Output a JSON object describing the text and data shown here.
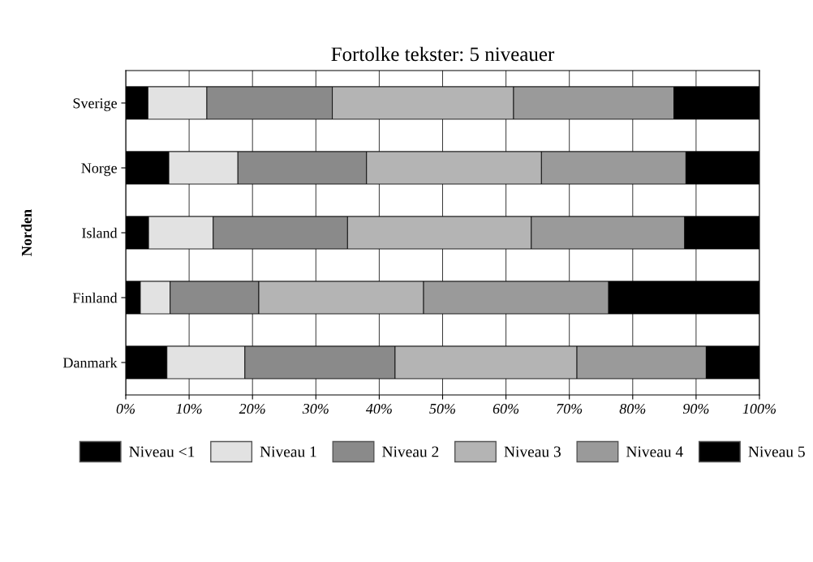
{
  "chart_data": {
    "type": "bar",
    "orientation": "horizontal",
    "stacked": true,
    "title": "Fortolke tekster: 5 niveauer",
    "ylabel": "Norden",
    "categories": [
      "Sverige",
      "Norge",
      "Island",
      "Finland",
      "Danmark"
    ],
    "series": [
      {
        "name": "Niveau <1",
        "color": "#000000",
        "values": [
          3.5,
          6.8,
          3.6,
          2.3,
          6.5
        ]
      },
      {
        "name": "Niveau 1",
        "color": "#e2e2e2",
        "values": [
          9.3,
          10.9,
          10.2,
          4.7,
          12.3
        ]
      },
      {
        "name": "Niveau 2",
        "color": "#8a8a8a",
        "values": [
          19.8,
          20.3,
          21.2,
          14.0,
          23.7
        ]
      },
      {
        "name": "Niveau 3",
        "color": "#b4b4b4",
        "values": [
          28.6,
          27.6,
          29.0,
          26.0,
          28.7
        ]
      },
      {
        "name": "Niveau 4",
        "color": "#9a9a9a",
        "values": [
          25.3,
          22.8,
          24.2,
          29.2,
          20.4
        ]
      },
      {
        "name": "Niveau 5",
        "color": "#000000",
        "values": [
          13.5,
          11.6,
          11.8,
          23.8,
          8.4
        ]
      }
    ],
    "xlim": [
      0,
      100
    ],
    "xticks": [
      {
        "value": 0,
        "label": "0%"
      },
      {
        "value": 10,
        "label": "10%"
      },
      {
        "value": 20,
        "label": "20%"
      },
      {
        "value": 30,
        "label": "30%"
      },
      {
        "value": 40,
        "label": "40%"
      },
      {
        "value": 50,
        "label": "50%"
      },
      {
        "value": 60,
        "label": "60%"
      },
      {
        "value": 70,
        "label": "70%"
      },
      {
        "value": 80,
        "label": "80%"
      },
      {
        "value": 90,
        "label": "90%"
      },
      {
        "value": 100,
        "label": "100%"
      }
    ],
    "grid": true,
    "legend": "bottom"
  }
}
